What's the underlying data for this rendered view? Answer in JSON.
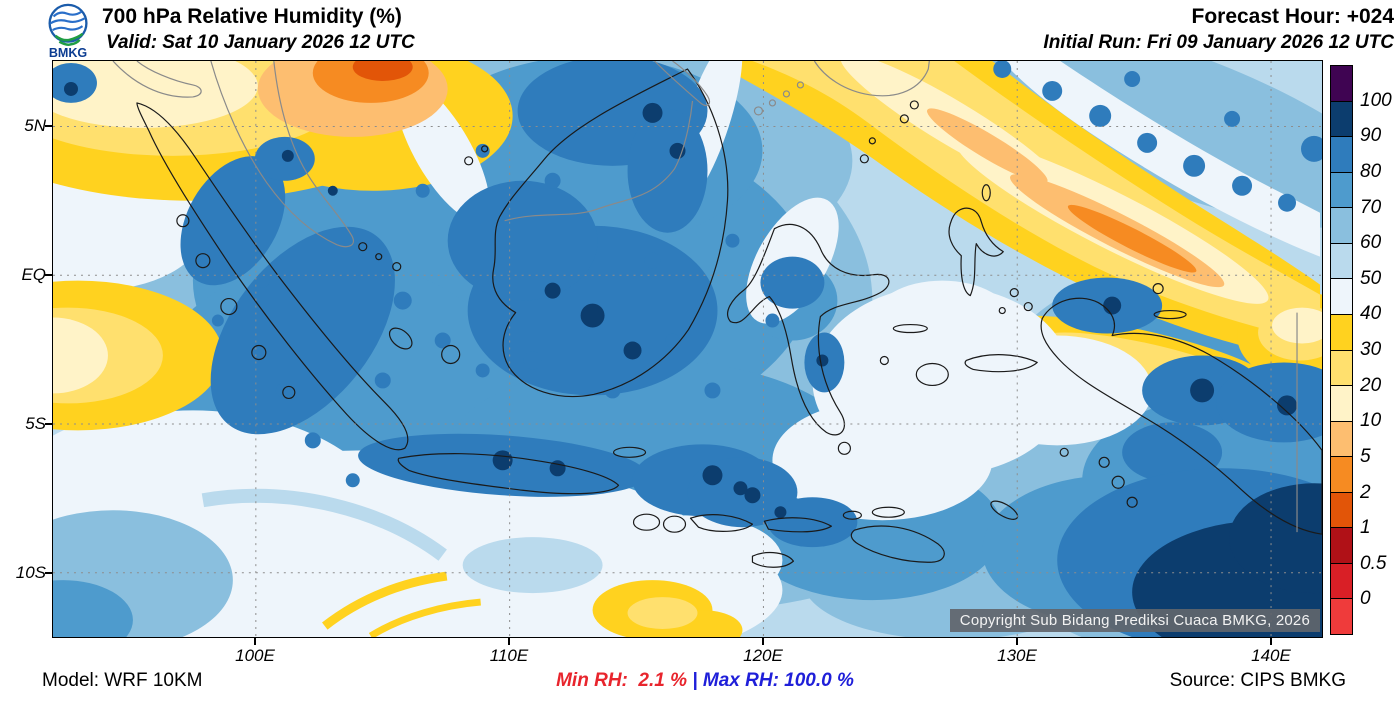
{
  "header": {
    "logo_text": "BMKG",
    "title": "700 hPa Relative Humidity (%)",
    "valid_label": "Valid: Sat 10 January 2026 12 UTC",
    "forecast_hour": "Forecast Hour: +024",
    "initial_run": "Initial Run: Fri 09 January 2026 12 UTC"
  },
  "map": {
    "lat_ticks": [
      "5N",
      "EQ",
      "5S",
      "10S"
    ],
    "lon_ticks": [
      "100E",
      "110E",
      "120E",
      "130E",
      "140E"
    ],
    "copyright": "Copyright Sub Bidang Prediksi Cuaca BMKG, 2026"
  },
  "colorbar": {
    "title": "Relative Humidity (%)",
    "labels": [
      "100",
      "90",
      "80",
      "70",
      "60",
      "50",
      "40",
      "30",
      "20",
      "10",
      "5",
      "2",
      "1",
      "0.5",
      "0"
    ],
    "colors": [
      "#3f0452",
      "#0c3d6e",
      "#2f7cbc",
      "#4e9bcd",
      "#8abfde",
      "#badaed",
      "#eef5fb",
      "#ffd21f",
      "#ffe06e",
      "#fff3c8",
      "#fdbe70",
      "#f68b22",
      "#e25508",
      "#b01117",
      "#d91f26",
      "#ef3b3b"
    ]
  },
  "footer": {
    "model": "Model: WRF 10KM",
    "min_rh": "Min RH:  2.1 %",
    "separator": " | ",
    "max_rh": "Max RH: 100.0 %",
    "source": "Source: CIPS BMKG",
    "min_color": "#e8252d",
    "max_color": "#1f1fd9"
  }
}
